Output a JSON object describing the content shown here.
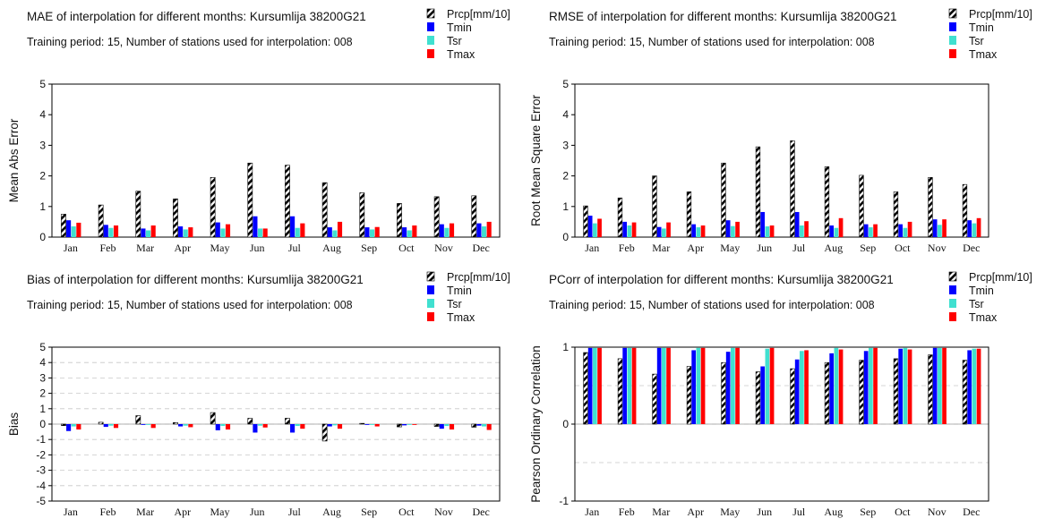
{
  "colors": {
    "Prcp": "hatched-black",
    "Tmin": "#0000ff",
    "Tsr": "#40e0d0",
    "Tmax": "#ff0000"
  },
  "chart_data": [
    {
      "type": "bar",
      "title": "MAE of interpolation for different months: Kursumlija  38200G21",
      "subtitle": "Training period: 15, Number of stations used for interpolation: 008",
      "ylabel": "Mean Abs Error",
      "ylim": [
        0,
        5
      ],
      "yticks": [
        0,
        1,
        2,
        3,
        4,
        5
      ],
      "grid": false,
      "legend_position": "top-right",
      "categories": [
        "Jan",
        "Feb",
        "Mar",
        "Apr",
        "May",
        "Jun",
        "Jul",
        "Aug",
        "Sep",
        "Oct",
        "Nov",
        "Dec"
      ],
      "series": [
        {
          "name": "Prcp[mm/10]",
          "values": [
            0.75,
            1.05,
            1.5,
            1.25,
            1.95,
            2.42,
            2.35,
            1.78,
            1.45,
            1.1,
            1.32,
            1.35
          ]
        },
        {
          "name": "Tmin",
          "values": [
            0.55,
            0.4,
            0.28,
            0.35,
            0.48,
            0.68,
            0.68,
            0.32,
            0.32,
            0.32,
            0.42,
            0.45
          ]
        },
        {
          "name": "Tsr",
          "values": [
            0.35,
            0.3,
            0.22,
            0.25,
            0.28,
            0.28,
            0.3,
            0.22,
            0.25,
            0.22,
            0.3,
            0.35
          ]
        },
        {
          "name": "Tmax",
          "values": [
            0.47,
            0.38,
            0.38,
            0.32,
            0.42,
            0.28,
            0.45,
            0.5,
            0.33,
            0.38,
            0.45,
            0.5
          ]
        }
      ]
    },
    {
      "type": "bar",
      "title": "RMSE of interpolation for different months: Kursumlija  38200G21",
      "subtitle": "Training period: 15, Number of stations used for interpolation: 008",
      "ylabel": "Root Mean Square Error",
      "ylim": [
        0,
        5
      ],
      "yticks": [
        0,
        1,
        2,
        3,
        4,
        5
      ],
      "grid": false,
      "legend_position": "top-right",
      "categories": [
        "Jan",
        "Feb",
        "Mar",
        "Apr",
        "May",
        "Jun",
        "Jul",
        "Aug",
        "Sep",
        "Oct",
        "Nov",
        "Dec"
      ],
      "series": [
        {
          "name": "Prcp[mm/10]",
          "values": [
            1.02,
            1.28,
            2.0,
            1.48,
            2.42,
            2.95,
            3.15,
            2.3,
            2.02,
            1.48,
            1.95,
            1.72
          ]
        },
        {
          "name": "Tmin",
          "values": [
            0.7,
            0.5,
            0.33,
            0.42,
            0.55,
            0.82,
            0.82,
            0.38,
            0.42,
            0.42,
            0.58,
            0.55
          ]
        },
        {
          "name": "Tsr",
          "values": [
            0.45,
            0.38,
            0.28,
            0.32,
            0.36,
            0.35,
            0.38,
            0.3,
            0.32,
            0.3,
            0.4,
            0.45
          ]
        },
        {
          "name": "Tmax",
          "values": [
            0.6,
            0.48,
            0.48,
            0.38,
            0.5,
            0.38,
            0.52,
            0.62,
            0.42,
            0.5,
            0.58,
            0.62
          ]
        }
      ]
    },
    {
      "type": "bar",
      "title": "Bias of interpolation for different months: Kursumlija  38200G21",
      "subtitle": "Training period: 15, Number of stations used for interpolation: 008",
      "ylabel": "Bias",
      "ylim": [
        -5,
        5
      ],
      "yticks": [
        -5,
        -4,
        -3,
        -2,
        -1,
        0,
        1,
        2,
        3,
        4,
        5
      ],
      "grid": true,
      "legend_position": "top-right",
      "categories": [
        "Jan",
        "Feb",
        "Mar",
        "Apr",
        "May",
        "Jun",
        "Jul",
        "Aug",
        "Sep",
        "Oct",
        "Nov",
        "Dec"
      ],
      "series": [
        {
          "name": "Prcp[mm/10]",
          "values": [
            -0.1,
            0.12,
            0.55,
            0.1,
            0.75,
            0.38,
            0.38,
            -1.1,
            0.05,
            -0.18,
            -0.15,
            -0.2
          ]
        },
        {
          "name": "Tmin",
          "values": [
            -0.45,
            -0.18,
            -0.05,
            -0.15,
            -0.4,
            -0.55,
            -0.55,
            -0.15,
            -0.05,
            -0.08,
            -0.3,
            -0.1
          ]
        },
        {
          "name": "Tsr",
          "values": [
            -0.15,
            -0.1,
            -0.05,
            -0.1,
            -0.12,
            -0.1,
            -0.12,
            -0.08,
            -0.05,
            -0.05,
            -0.12,
            -0.15
          ]
        },
        {
          "name": "Tmax",
          "values": [
            -0.35,
            -0.25,
            -0.25,
            -0.2,
            -0.35,
            -0.22,
            -0.3,
            -0.3,
            -0.15,
            -0.05,
            -0.35,
            -0.38
          ]
        }
      ]
    },
    {
      "type": "bar",
      "title": "PCorr of interpolation for different months: Kursumlija  38200G21",
      "subtitle": "Training period: 15, Number of stations used for interpolation: 008",
      "ylabel": "Pearson Ordinary Correlation",
      "ylim": [
        -1,
        1
      ],
      "yticks": [
        -1,
        0,
        1
      ],
      "grid": true,
      "legend_position": "top-right",
      "categories": [
        "Jan",
        "Feb",
        "Mar",
        "Apr",
        "May",
        "Jun",
        "Jul",
        "Aug",
        "Sep",
        "Oct",
        "Nov",
        "Dec"
      ],
      "series": [
        {
          "name": "Prcp[mm/10]",
          "values": [
            0.93,
            0.85,
            0.65,
            0.75,
            0.8,
            0.68,
            0.72,
            0.8,
            0.83,
            0.85,
            0.9,
            0.83
          ]
        },
        {
          "name": "Tmin",
          "values": [
            0.99,
            0.99,
            0.99,
            0.96,
            0.94,
            0.75,
            0.84,
            0.92,
            0.95,
            0.98,
            0.99,
            0.96
          ]
        },
        {
          "name": "Tsr",
          "values": [
            0.99,
            0.99,
            0.99,
            0.99,
            0.99,
            0.98,
            0.95,
            0.99,
            0.99,
            0.99,
            0.99,
            0.98
          ]
        },
        {
          "name": "Tmax",
          "values": [
            0.99,
            0.99,
            0.99,
            0.99,
            0.99,
            0.99,
            0.96,
            0.97,
            0.99,
            0.97,
            0.99,
            0.98
          ]
        }
      ]
    }
  ]
}
